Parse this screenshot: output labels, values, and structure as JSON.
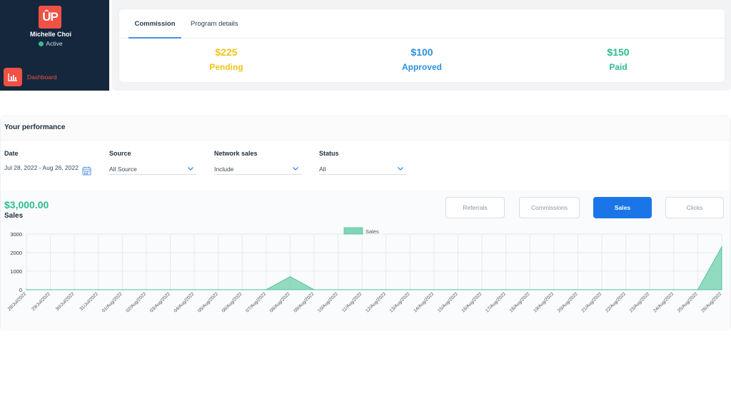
{
  "sidebar": {
    "logo_text": "ÛP",
    "user_name": "Michelle Choi",
    "user_status": "Active",
    "nav": [
      {
        "label": "Dashboard",
        "icon": "bar-chart-icon",
        "active": true
      }
    ]
  },
  "commission": {
    "tabs": [
      {
        "label": "Commission",
        "active": true
      },
      {
        "label": "Program details",
        "active": false
      }
    ],
    "stats": [
      {
        "value": "$225",
        "label": "Pending",
        "color": "#f2c318"
      },
      {
        "value": "$100",
        "label": "Approved",
        "color": "#2f8fdb"
      },
      {
        "value": "$150",
        "label": "Paid",
        "color": "#2dbb8f"
      }
    ]
  },
  "performance": {
    "title": "Your performance",
    "filters": {
      "date": {
        "label": "Date",
        "value": "Jul 28, 2022 - Aug 26, 2022"
      },
      "source": {
        "label": "Source",
        "value": "All Source"
      },
      "network_sales": {
        "label": "Network sales",
        "value": "Include"
      },
      "status": {
        "label": "Status",
        "value": "All"
      }
    },
    "total": "$3,000.00",
    "total_label": "Sales",
    "buttons": [
      {
        "label": "Referrals",
        "active": false
      },
      {
        "label": "Commissions",
        "active": false
      },
      {
        "label": "Sales",
        "active": true
      },
      {
        "label": "Clicks",
        "active": false
      }
    ]
  },
  "chart_data": {
    "type": "area",
    "legend": "Sales",
    "color": "#7fd5b6",
    "ylim": [
      0,
      3000
    ],
    "yticks": [
      0,
      1000,
      2000,
      3000
    ],
    "x": [
      "28/Jul/2022",
      "29/Jul/2022",
      "30/Jul/2022",
      "31/Jul/2022",
      "01/Aug/2022",
      "02/Aug/2022",
      "03/Aug/2022",
      "04/Aug/2022",
      "05/Aug/2022",
      "06/Aug/2022",
      "07/Aug/2022",
      "08/Aug/2022",
      "09/Aug/2022",
      "10/Aug/2022",
      "11/Aug/2022",
      "12/Aug/2022",
      "13/Aug/2022",
      "14/Aug/2022",
      "15/Aug/2022",
      "16/Aug/2022",
      "17/Aug/2022",
      "18/Aug/2022",
      "19/Aug/2022",
      "20/Aug/2022",
      "21/Aug/2022",
      "22/Aug/2022",
      "23/Aug/2022",
      "24/Aug/2022",
      "25/Aug/2022",
      "26/Aug/2022"
    ],
    "series": [
      {
        "name": "Sales",
        "values": [
          0,
          0,
          0,
          0,
          0,
          0,
          0,
          0,
          0,
          0,
          0,
          700,
          0,
          0,
          0,
          0,
          0,
          0,
          0,
          0,
          0,
          0,
          0,
          0,
          0,
          0,
          0,
          0,
          0,
          2300
        ]
      }
    ],
    "grid": true,
    "legend_position": "top-center"
  }
}
